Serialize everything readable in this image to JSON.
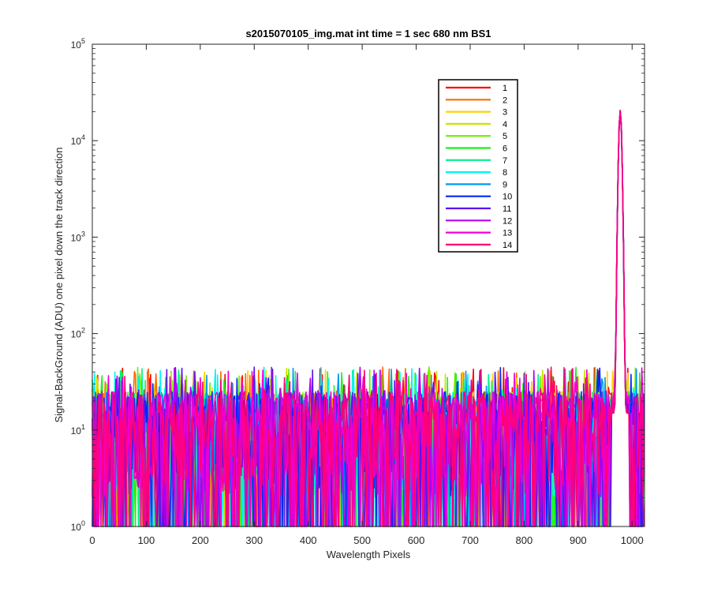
{
  "chart_data": {
    "type": "line",
    "title": "s2015070105_img.mat int time = 1 sec  680 nm BS1",
    "xlabel": "Wavelength Pixels",
    "ylabel": "Signal-BackGround (ADU) one pixel down the track direction",
    "xlim": [
      0,
      1023
    ],
    "ylim": [
      1,
      100000
    ],
    "yscale": "log",
    "grid": false,
    "legend_position": "top-right",
    "x_ticks": [
      "0",
      "100",
      "200",
      "300",
      "400",
      "500",
      "600",
      "700",
      "800",
      "900",
      "1000"
    ],
    "y_ticks": [
      {
        "base": "10",
        "exp": "0"
      },
      {
        "base": "10",
        "exp": "1"
      },
      {
        "base": "10",
        "exp": "2"
      },
      {
        "base": "10",
        "exp": "3"
      },
      {
        "base": "10",
        "exp": "4"
      },
      {
        "base": "10",
        "exp": "5"
      }
    ],
    "noise_range": [
      1,
      45
    ],
    "peak": {
      "x": 978,
      "y": 22000
    },
    "series": [
      {
        "name": "1",
        "color": "#ff0000"
      },
      {
        "name": "2",
        "color": "#ff6a00"
      },
      {
        "name": "3",
        "color": "#ffd200"
      },
      {
        "name": "4",
        "color": "#c8e600"
      },
      {
        "name": "5",
        "color": "#6cf000"
      },
      {
        "name": "6",
        "color": "#1ef01e"
      },
      {
        "name": "7",
        "color": "#00f08c"
      },
      {
        "name": "8",
        "color": "#00f5f5"
      },
      {
        "name": "9",
        "color": "#0096f0"
      },
      {
        "name": "10",
        "color": "#0028f5"
      },
      {
        "name": "11",
        "color": "#5a14f0"
      },
      {
        "name": "12",
        "color": "#b400f0"
      },
      {
        "name": "13",
        "color": "#f000d2"
      },
      {
        "name": "14",
        "color": "#ff0078"
      }
    ]
  }
}
